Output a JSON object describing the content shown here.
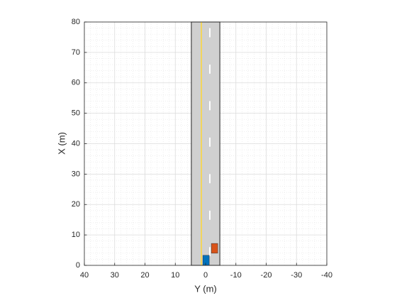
{
  "chart_data": {
    "type": "scenario",
    "xlabel": "Y (m)",
    "ylabel": "X (m)",
    "xlim": [
      40,
      -40
    ],
    "xticks": [
      40,
      30,
      20,
      10,
      0,
      -10,
      -20,
      -30,
      -40
    ],
    "ylim": [
      0,
      80
    ],
    "yticks": [
      0,
      10,
      20,
      30,
      40,
      50,
      60,
      70,
      80
    ],
    "grid": true,
    "minor_grid": true,
    "road": {
      "color": "#d0d0d0",
      "x": [
        0,
        80
      ],
      "y": [
        4.7,
        -4.7
      ]
    },
    "lane_markings": [
      {
        "style": "solid",
        "color": "#f2d55c",
        "y": 1.4
      },
      {
        "style": "dashed",
        "color": "#ffffff",
        "y": -1.4
      }
    ],
    "vehicles": [
      {
        "color": "#0072bd",
        "x": [
          0,
          3.3
        ],
        "y": [
          0.9,
          -1.2
        ]
      },
      {
        "color": "#d95319",
        "x": [
          4,
          7.2
        ],
        "y": [
          -1.9,
          -4.0
        ]
      }
    ]
  }
}
